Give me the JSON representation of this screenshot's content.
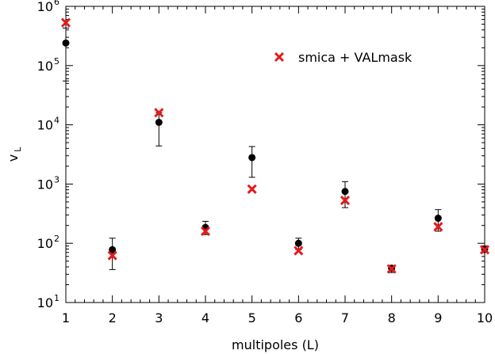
{
  "chart_data": {
    "type": "scatter",
    "title": "",
    "xlabel": "multipoles (L)",
    "ylabel": "v",
    "ylabel_subscript": "L",
    "x_ticks": [
      1,
      2,
      3,
      4,
      5,
      6,
      7,
      8,
      9,
      10
    ],
    "y_ticks": [
      {
        "base": "10",
        "exp": "1",
        "value": 10
      },
      {
        "base": "10",
        "exp": "2",
        "value": 100
      },
      {
        "base": "10",
        "exp": "3",
        "value": 1000
      },
      {
        "base": "10",
        "exp": "4",
        "value": 10000
      },
      {
        "base": "10",
        "exp": "5",
        "value": 100000
      },
      {
        "base": "10",
        "exp": "6",
        "value": 1000000
      }
    ],
    "xlim": [
      1,
      10
    ],
    "ylim": [
      10,
      1000000
    ],
    "yscale": "log",
    "grid": false,
    "legend_position": "top-right",
    "colors": {
      "reference": "#000000",
      "smica": "#e41a1c"
    },
    "series": [
      {
        "marker": "filled-circle",
        "color": "#000000",
        "error_bars": true,
        "points": [
          {
            "x": 1,
            "y": 240000,
            "err_low": 55000,
            "err_high": 430000
          },
          {
            "x": 2,
            "y": 78,
            "err_low": 36,
            "err_high": 122
          },
          {
            "x": 3,
            "y": 11000,
            "err_low": 4400,
            "err_high": 16000
          },
          {
            "x": 4,
            "y": 185,
            "err_low": 140,
            "err_high": 235
          },
          {
            "x": 5,
            "y": 2800,
            "err_low": 1300,
            "err_high": 4300
          },
          {
            "x": 6,
            "y": 100,
            "err_low": 78,
            "err_high": 122
          },
          {
            "x": 7,
            "y": 750,
            "err_low": 400,
            "err_high": 1100
          },
          {
            "x": 8,
            "y": 38,
            "err_low": 32,
            "err_high": 42
          },
          {
            "x": 9,
            "y": 265,
            "err_low": 160,
            "err_high": 370
          },
          {
            "x": 10,
            "y": 80,
            "err_low": 70,
            "err_high": 90
          }
        ]
      },
      {
        "name": "smica + VALmask",
        "marker": "x",
        "color": "#e41a1c",
        "points": [
          {
            "x": 1,
            "y": 530000
          },
          {
            "x": 2,
            "y": 62
          },
          {
            "x": 3,
            "y": 16000
          },
          {
            "x": 4,
            "y": 160
          },
          {
            "x": 5,
            "y": 820
          },
          {
            "x": 6,
            "y": 75
          },
          {
            "x": 7,
            "y": 530
          },
          {
            "x": 8,
            "y": 37
          },
          {
            "x": 9,
            "y": 190
          },
          {
            "x": 10,
            "y": 78
          }
        ]
      }
    ]
  }
}
